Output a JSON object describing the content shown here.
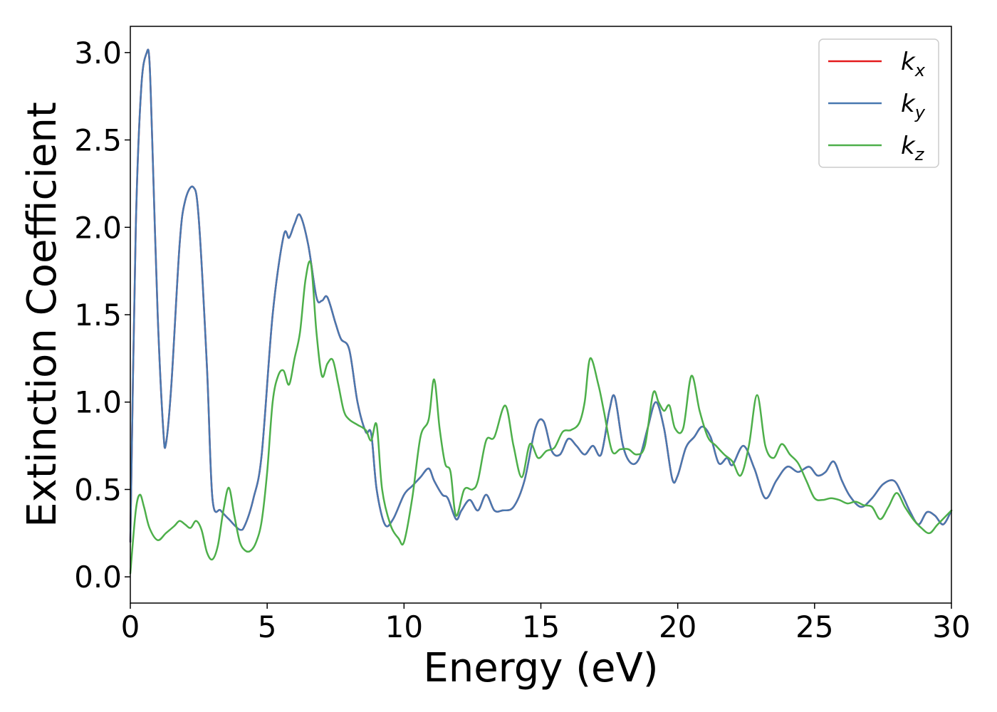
{
  "chart_data": {
    "type": "line",
    "title": "",
    "xlabel": "Energy (eV)",
    "ylabel": "Extinction Coefficient",
    "xlim": [
      0,
      30
    ],
    "ylim": [
      -0.15,
      3.15
    ],
    "xticks": [
      0,
      5,
      10,
      15,
      20,
      25,
      30
    ],
    "xtick_labels": [
      "0",
      "5",
      "10",
      "15",
      "20",
      "25",
      "30"
    ],
    "yticks": [
      0.0,
      0.5,
      1.0,
      1.5,
      2.0,
      2.5,
      3.0
    ],
    "ytick_labels": [
      "0.0",
      "0.5",
      "1.0",
      "1.5",
      "2.0",
      "2.5",
      "3.0"
    ],
    "grid": false,
    "legend_position": "top-right",
    "series": [
      {
        "name": "k",
        "subscript": "x",
        "color": "#e41a1c",
        "x": [
          0,
          0.2,
          0.4,
          0.6,
          0.7,
          0.8,
          1.0,
          1.2,
          1.3,
          1.5,
          1.8,
          2.0,
          2.3,
          2.5,
          2.8,
          3.0,
          3.3,
          3.6,
          4.0,
          4.2,
          4.5,
          4.8,
          5.2,
          5.6,
          5.8,
          6.0,
          6.2,
          6.5,
          6.8,
          7.0,
          7.2,
          7.5,
          7.7,
          8.0,
          8.3,
          8.6,
          8.8,
          9.0,
          9.3,
          9.6,
          10.0,
          10.3,
          10.6,
          10.9,
          11.1,
          11.4,
          11.6,
          11.9,
          12.1,
          12.4,
          12.7,
          13.0,
          13.3,
          13.6,
          14.0,
          14.4,
          14.8,
          15.1,
          15.4,
          15.7,
          16.0,
          16.3,
          16.6,
          16.9,
          17.2,
          17.5,
          17.7,
          18.0,
          18.3,
          18.6,
          18.9,
          19.2,
          19.5,
          19.8,
          20.0,
          20.3,
          20.6,
          20.9,
          21.2,
          21.5,
          21.8,
          22.0,
          22.4,
          22.8,
          23.2,
          23.6,
          24.0,
          24.4,
          24.8,
          25.1,
          25.4,
          25.7,
          26.0,
          26.3,
          26.7,
          27.1,
          27.5,
          27.9,
          28.2,
          28.5,
          28.8,
          29.1,
          29.4,
          29.7,
          30.0
        ],
        "y": [
          0.2,
          2.0,
          2.8,
          3.0,
          2.95,
          2.5,
          1.5,
          0.85,
          0.76,
          1.1,
          1.9,
          2.15,
          2.23,
          2.05,
          1.2,
          0.45,
          0.38,
          0.33,
          0.27,
          0.3,
          0.45,
          0.7,
          1.5,
          1.95,
          1.94,
          2.02,
          2.07,
          1.9,
          1.6,
          1.58,
          1.6,
          1.45,
          1.36,
          1.3,
          1.0,
          0.83,
          0.82,
          0.5,
          0.3,
          0.33,
          0.47,
          0.52,
          0.57,
          0.62,
          0.55,
          0.47,
          0.45,
          0.33,
          0.38,
          0.44,
          0.38,
          0.47,
          0.38,
          0.38,
          0.4,
          0.55,
          0.85,
          0.89,
          0.72,
          0.7,
          0.79,
          0.75,
          0.7,
          0.75,
          0.7,
          0.95,
          1.03,
          0.75,
          0.65,
          0.68,
          0.85,
          1.0,
          0.85,
          0.56,
          0.58,
          0.74,
          0.8,
          0.86,
          0.8,
          0.65,
          0.68,
          0.64,
          0.75,
          0.62,
          0.45,
          0.55,
          0.63,
          0.6,
          0.63,
          0.58,
          0.6,
          0.66,
          0.55,
          0.46,
          0.4,
          0.45,
          0.53,
          0.55,
          0.47,
          0.37,
          0.3,
          0.37,
          0.35,
          0.3,
          0.38
        ]
      },
      {
        "name": "k",
        "subscript": "y",
        "color": "#4878b0",
        "x": [
          0,
          0.2,
          0.4,
          0.6,
          0.7,
          0.8,
          1.0,
          1.2,
          1.3,
          1.5,
          1.8,
          2.0,
          2.3,
          2.5,
          2.8,
          3.0,
          3.3,
          3.6,
          4.0,
          4.2,
          4.5,
          4.8,
          5.2,
          5.6,
          5.8,
          6.0,
          6.2,
          6.5,
          6.8,
          7.0,
          7.2,
          7.5,
          7.7,
          8.0,
          8.3,
          8.6,
          8.8,
          9.0,
          9.3,
          9.6,
          10.0,
          10.3,
          10.6,
          10.9,
          11.1,
          11.4,
          11.6,
          11.9,
          12.1,
          12.4,
          12.7,
          13.0,
          13.3,
          13.6,
          14.0,
          14.4,
          14.8,
          15.1,
          15.4,
          15.7,
          16.0,
          16.3,
          16.6,
          16.9,
          17.2,
          17.5,
          17.7,
          18.0,
          18.3,
          18.6,
          18.9,
          19.2,
          19.5,
          19.8,
          20.0,
          20.3,
          20.6,
          20.9,
          21.2,
          21.5,
          21.8,
          22.0,
          22.4,
          22.8,
          23.2,
          23.6,
          24.0,
          24.4,
          24.8,
          25.1,
          25.4,
          25.7,
          26.0,
          26.3,
          26.7,
          27.1,
          27.5,
          27.9,
          28.2,
          28.5,
          28.8,
          29.1,
          29.4,
          29.7,
          30.0
        ],
        "y": [
          0.2,
          2.0,
          2.8,
          3.0,
          2.95,
          2.5,
          1.5,
          0.85,
          0.76,
          1.1,
          1.9,
          2.15,
          2.23,
          2.05,
          1.2,
          0.45,
          0.38,
          0.33,
          0.27,
          0.3,
          0.45,
          0.7,
          1.5,
          1.95,
          1.94,
          2.02,
          2.07,
          1.9,
          1.6,
          1.58,
          1.6,
          1.45,
          1.36,
          1.3,
          1.0,
          0.83,
          0.82,
          0.5,
          0.3,
          0.33,
          0.47,
          0.52,
          0.57,
          0.62,
          0.55,
          0.47,
          0.45,
          0.33,
          0.38,
          0.44,
          0.38,
          0.47,
          0.38,
          0.38,
          0.4,
          0.55,
          0.85,
          0.89,
          0.72,
          0.7,
          0.79,
          0.75,
          0.7,
          0.75,
          0.7,
          0.95,
          1.03,
          0.75,
          0.65,
          0.68,
          0.85,
          1.0,
          0.85,
          0.56,
          0.58,
          0.74,
          0.8,
          0.86,
          0.8,
          0.65,
          0.68,
          0.64,
          0.75,
          0.62,
          0.45,
          0.55,
          0.63,
          0.6,
          0.63,
          0.58,
          0.6,
          0.66,
          0.55,
          0.46,
          0.4,
          0.45,
          0.53,
          0.55,
          0.47,
          0.37,
          0.3,
          0.37,
          0.35,
          0.3,
          0.38
        ]
      },
      {
        "name": "k",
        "subscript": "z",
        "color": "#4daf4a",
        "x": [
          0,
          0.2,
          0.35,
          0.5,
          0.7,
          1.0,
          1.3,
          1.6,
          1.8,
          2.0,
          2.2,
          2.4,
          2.6,
          2.8,
          3.0,
          3.2,
          3.4,
          3.6,
          3.8,
          4.0,
          4.2,
          4.4,
          4.6,
          4.8,
          5.0,
          5.2,
          5.4,
          5.6,
          5.8,
          6.0,
          6.2,
          6.4,
          6.6,
          6.8,
          7.0,
          7.2,
          7.4,
          7.6,
          7.8,
          8.0,
          8.3,
          8.6,
          8.8,
          9.0,
          9.2,
          9.5,
          9.8,
          10.0,
          10.3,
          10.6,
          10.9,
          11.1,
          11.3,
          11.5,
          11.7,
          11.9,
          12.2,
          12.5,
          12.7,
          13.0,
          13.3,
          13.7,
          14.0,
          14.3,
          14.6,
          14.9,
          15.2,
          15.5,
          15.8,
          16.1,
          16.4,
          16.6,
          16.8,
          17.1,
          17.3,
          17.6,
          17.9,
          18.2,
          18.5,
          18.8,
          19.1,
          19.3,
          19.5,
          19.7,
          19.9,
          20.2,
          20.5,
          20.8,
          21.1,
          21.4,
          21.7,
          22.0,
          22.3,
          22.6,
          22.9,
          23.2,
          23.5,
          23.8,
          24.1,
          24.4,
          24.7,
          25.0,
          25.3,
          25.6,
          25.9,
          26.2,
          26.5,
          26.8,
          27.1,
          27.4,
          27.7,
          28.0,
          28.3,
          28.6,
          28.9,
          29.2,
          29.5,
          30.0
        ],
        "y": [
          0.02,
          0.38,
          0.47,
          0.4,
          0.28,
          0.21,
          0.25,
          0.29,
          0.32,
          0.3,
          0.28,
          0.32,
          0.27,
          0.14,
          0.1,
          0.18,
          0.38,
          0.51,
          0.35,
          0.2,
          0.15,
          0.15,
          0.2,
          0.32,
          0.6,
          1.0,
          1.15,
          1.18,
          1.1,
          1.25,
          1.4,
          1.7,
          1.79,
          1.4,
          1.15,
          1.22,
          1.24,
          1.1,
          0.95,
          0.9,
          0.87,
          0.84,
          0.78,
          0.87,
          0.5,
          0.3,
          0.22,
          0.2,
          0.45,
          0.8,
          0.9,
          1.13,
          0.85,
          0.65,
          0.6,
          0.35,
          0.5,
          0.5,
          0.55,
          0.78,
          0.8,
          0.98,
          0.75,
          0.57,
          0.76,
          0.68,
          0.72,
          0.74,
          0.83,
          0.84,
          0.88,
          1.0,
          1.25,
          1.1,
          0.95,
          0.72,
          0.73,
          0.73,
          0.7,
          0.75,
          1.05,
          1.0,
          0.95,
          0.98,
          0.85,
          0.85,
          1.15,
          0.95,
          0.8,
          0.75,
          0.7,
          0.66,
          0.58,
          0.75,
          1.04,
          0.75,
          0.68,
          0.76,
          0.7,
          0.65,
          0.55,
          0.45,
          0.44,
          0.45,
          0.44,
          0.42,
          0.43,
          0.41,
          0.4,
          0.33,
          0.4,
          0.48,
          0.4,
          0.33,
          0.28,
          0.25,
          0.3,
          0.38
        ]
      }
    ]
  }
}
